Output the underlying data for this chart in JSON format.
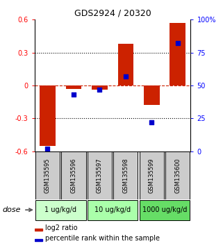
{
  "title": "GDS2924 / 20320",
  "samples": [
    "GSM135595",
    "GSM135596",
    "GSM135597",
    "GSM135598",
    "GSM135599",
    "GSM135600"
  ],
  "log2_ratio": [
    -0.55,
    -0.03,
    -0.04,
    0.38,
    -0.18,
    0.57
  ],
  "percentile_rank": [
    2,
    43,
    47,
    57,
    22,
    82
  ],
  "ylim_left": [
    -0.6,
    0.6
  ],
  "ylim_right": [
    0,
    100
  ],
  "yticks_left": [
    -0.6,
    -0.3,
    0.0,
    0.3,
    0.6
  ],
  "yticks_right": [
    0,
    25,
    50,
    75,
    100
  ],
  "ytick_labels_right": [
    "0",
    "25",
    "50",
    "75",
    "100%"
  ],
  "hlines_dotted": [
    0.3,
    -0.3
  ],
  "hline_red_dashed": 0.0,
  "bar_color": "#cc2200",
  "dot_color": "#0000cc",
  "dose_groups": [
    {
      "label": "1 ug/kg/d",
      "start": 0,
      "end": 2,
      "color": "#ccffcc"
    },
    {
      "label": "10 ug/kg/d",
      "start": 2,
      "end": 4,
      "color": "#aaffaa"
    },
    {
      "label": "1000 ug/kg/d",
      "start": 4,
      "end": 6,
      "color": "#66dd66"
    }
  ],
  "legend_bar_label": "log2 ratio",
  "legend_dot_label": "percentile rank within the sample",
  "xlabel_dose": "dose",
  "bg_sample_box": "#cccccc",
  "title_fontsize": 9,
  "tick_fontsize": 7,
  "sample_fontsize": 6,
  "dose_fontsize": 7,
  "legend_fontsize": 7
}
